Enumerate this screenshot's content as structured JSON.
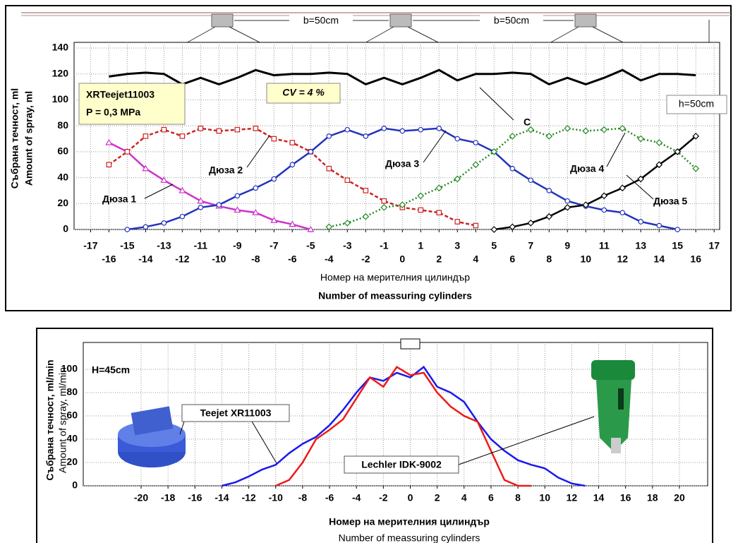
{
  "chart_data": [
    {
      "type": "line",
      "xlim": [
        -17.9,
        17.3
      ],
      "ylim": [
        0,
        140
      ],
      "xticks": [
        -17,
        -16,
        -15,
        -14,
        -13,
        -12,
        -11,
        -10,
        -9,
        -8,
        -7,
        -6,
        -5,
        -4,
        -3,
        -2,
        -1,
        0,
        1,
        2,
        3,
        4,
        5,
        6,
        7,
        8,
        9,
        10,
        11,
        12,
        13,
        14,
        15,
        16,
        17
      ],
      "yticks": [
        0,
        20,
        40,
        60,
        80,
        100,
        120,
        140
      ],
      "grid": true,
      "y_label": [
        "Събрана течност, ml",
        "Amount of spray, ml"
      ],
      "x_label": [
        "Номер на мерителния цилиндър",
        "Number of meassuring cylinders"
      ],
      "annotations": [
        "XRTeejet11003",
        "P = 0,3 MPa",
        "CV = 4 %",
        "b=50cm",
        "b=50cm",
        "h=50cm"
      ],
      "series": [
        {
          "name": "C",
          "color": "#000000",
          "marker": "none",
          "dash": "solid",
          "x": [
            -16,
            -15,
            -14,
            -13,
            -12,
            -11,
            -10,
            -9,
            -8,
            -7,
            -6,
            -5,
            -4,
            -3,
            -2,
            -1,
            0,
            1,
            2,
            3,
            4,
            5,
            6,
            7,
            8,
            9,
            10,
            11,
            12,
            13,
            14,
            15,
            16
          ],
          "values": [
            118,
            120,
            121,
            120,
            112,
            117,
            112,
            117,
            123,
            119,
            120,
            120,
            121,
            120,
            112,
            117,
            112,
            117,
            123,
            115,
            120,
            120,
            121,
            120,
            112,
            117,
            112,
            117,
            123,
            115,
            120,
            120,
            119
          ]
        },
        {
          "name": "Дюза 1",
          "color": "#cc33cc",
          "marker": "triangle",
          "dash": "solid",
          "x": [
            -16,
            -15,
            -14,
            -13,
            -12,
            -11,
            -10,
            -9,
            -8,
            -7,
            -6,
            -5
          ],
          "values": [
            67,
            60,
            47,
            38,
            30,
            22,
            18,
            15,
            13,
            7,
            4,
            0
          ]
        },
        {
          "name": "Дюза 2",
          "color": "#cc2222",
          "marker": "square",
          "dash": "dashed",
          "x": [
            -16,
            -15,
            -14,
            -13,
            -12,
            -11,
            -10,
            -9,
            -8,
            -7,
            -6,
            -5,
            -4,
            -3,
            -2,
            -1,
            0,
            1,
            2,
            3,
            4
          ],
          "values": [
            50,
            60,
            72,
            77,
            72,
            78,
            76,
            77,
            78,
            70,
            67,
            60,
            47,
            38,
            30,
            22,
            17,
            15,
            13,
            6,
            3
          ]
        },
        {
          "name": "Дюза 3",
          "color": "#2233bb",
          "marker": "circle",
          "dash": "solid",
          "x": [
            -15,
            -14,
            -13,
            -12,
            -11,
            -10,
            -9,
            -8,
            -7,
            -6,
            -5,
            -4,
            -3,
            -2,
            -1,
            0,
            1,
            2,
            3,
            4,
            5,
            6,
            7,
            8,
            9,
            10,
            11,
            12,
            13,
            14,
            15
          ],
          "values": [
            0,
            2,
            5,
            10,
            17,
            19,
            26,
            32,
            39,
            50,
            60,
            72,
            77,
            72,
            78,
            76,
            77,
            78,
            70,
            67,
            60,
            47,
            38,
            30,
            22,
            18,
            15,
            13,
            6,
            3,
            0
          ]
        },
        {
          "name": "Дюза 4",
          "color": "#228822",
          "marker": "diamond",
          "dash": "dotted",
          "x": [
            -4,
            -3,
            -2,
            -1,
            0,
            1,
            2,
            3,
            4,
            5,
            6,
            7,
            8,
            9,
            10,
            11,
            12,
            13,
            14,
            15,
            16
          ],
          "values": [
            2,
            5,
            10,
            17,
            19,
            26,
            32,
            39,
            50,
            60,
            72,
            77,
            72,
            78,
            76,
            77,
            78,
            70,
            67,
            60,
            47
          ]
        },
        {
          "name": "Дюза 5",
          "color": "#000000",
          "marker": "diamond",
          "dash": "solid",
          "x": [
            5,
            6,
            7,
            8,
            9,
            10,
            11,
            12,
            13,
            14,
            15,
            16
          ],
          "values": [
            0,
            2,
            5,
            10,
            17,
            19,
            26,
            32,
            39,
            50,
            60,
            72
          ]
        }
      ]
    },
    {
      "type": "line",
      "xlim": [
        -24.3,
        22.1
      ],
      "ylim": [
        0,
        123
      ],
      "xticks": [
        -20,
        -18,
        -16,
        -14,
        -12,
        -10,
        -8,
        -6,
        -4,
        -2,
        0,
        2,
        4,
        6,
        8,
        10,
        12,
        14,
        16,
        18,
        20
      ],
      "yticks": [
        0,
        20,
        40,
        60,
        80,
        100
      ],
      "grid": true,
      "y_label": [
        "Събрана течност,  ml/min",
        "Amount of spray, ml/min"
      ],
      "x_label": [
        "Номер  на  мерителния  цилиндър",
        "Number of meassuring cylinders"
      ],
      "annotations": [
        "H=45cm"
      ],
      "series": [
        {
          "name": "Teejet XR11003",
          "color": "#1a1aee",
          "marker": "none",
          "dash": "solid",
          "x": [
            -14,
            -13,
            -12,
            -11,
            -10,
            -9,
            -8,
            -7,
            -6,
            -5,
            -4,
            -3,
            -2,
            -1,
            0,
            1,
            2,
            3,
            4,
            5,
            6,
            7,
            8,
            9,
            10,
            11,
            12,
            13
          ],
          "values": [
            0,
            3,
            8,
            14,
            18,
            28,
            36,
            42,
            52,
            65,
            80,
            93,
            90,
            97,
            93,
            102,
            85,
            80,
            72,
            55,
            40,
            30,
            22,
            18,
            15,
            7,
            2,
            0
          ]
        },
        {
          "name": "Lechler IDK-9002",
          "color": "#ee1a1a",
          "marker": "none",
          "dash": "solid",
          "x": [
            -10,
            -9,
            -8,
            -7,
            -6,
            -5,
            -4,
            -3,
            -2,
            -1,
            0,
            1,
            2,
            3,
            4,
            5,
            6,
            7,
            8,
            9
          ],
          "values": [
            0,
            5,
            20,
            40,
            48,
            57,
            75,
            93,
            85,
            102,
            95,
            97,
            80,
            68,
            60,
            55,
            30,
            5,
            0,
            0
          ]
        }
      ]
    }
  ]
}
